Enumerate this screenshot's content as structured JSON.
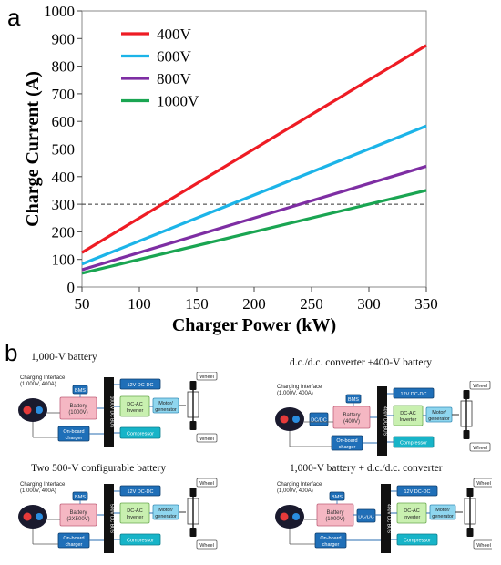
{
  "panel_a_label": "a",
  "panel_b_label": "b",
  "chart_data": {
    "type": "line",
    "xlabel": "Charger Power (kW)",
    "ylabel": "Charge Current (A)",
    "xlim": [
      50,
      350
    ],
    "ylim": [
      0,
      1000
    ],
    "x_ticks": [
      50,
      100,
      150,
      200,
      250,
      300,
      350
    ],
    "y_ticks": [
      0,
      100,
      200,
      300,
      400,
      500,
      600,
      700,
      800,
      900,
      1000
    ],
    "grid": false,
    "legend_position": "top-left",
    "reference_line": {
      "y": 300,
      "style": "dashed"
    },
    "x": [
      50,
      350
    ],
    "series": [
      {
        "name": "400V",
        "color": "#ee1c24",
        "values": [
          125,
          875
        ]
      },
      {
        "name": "600V",
        "color": "#1cb4e8",
        "values": [
          83.3,
          583.3
        ]
      },
      {
        "name": "800V",
        "color": "#7e2ea3",
        "values": [
          62.5,
          437.5
        ]
      },
      {
        "name": "1000V",
        "color": "#1aa552",
        "values": [
          50,
          350
        ]
      }
    ]
  },
  "schematics": [
    {
      "title": "1,000-V battery",
      "interface": "Charging Interface\n(1,000V, 400A)",
      "bms": "BMS",
      "battery": "Battery\n(1000V)",
      "bus": "1000V DC BUS",
      "dcdc12": "12V DC-DC",
      "inverter": "DC-AC\nInverter",
      "motor": "Motor/\ngenerator",
      "onboard": "On-board\ncharger",
      "compressor": "Compressor",
      "wheel_top": "Wheel",
      "wheel_bottom": "Wheel"
    },
    {
      "title": "d.c./d.c. converter +400-V battery",
      "interface": "Charging Interface\n(1,000V, 400A)",
      "dcdc_conv": "DC/DC",
      "bms": "BMS",
      "battery": "Battery\n(400V)",
      "bus": "400V DC BUS",
      "dcdc12": "12V DC-DC",
      "inverter": "DC-AC\nInverter",
      "motor": "Motor/\ngenerator",
      "onboard": "On-board\ncharger",
      "compressor": "Compressor",
      "wheel_top": "Wheel",
      "wheel_bottom": "Wheel"
    },
    {
      "title": "Two 500-V configurable battery",
      "interface": "Charging Interface\n(1,000V, 400A)",
      "bms": "BMS",
      "battery": "Battery\n(2X500V)",
      "bus": "500V DC BUS",
      "dcdc12": "12V DC-DC",
      "inverter": "DC-AC\nInverter",
      "motor": "Motor/\ngenerator",
      "onboard": "On-board\ncharger",
      "compressor": "Compressor",
      "wheel_top": "Wheel",
      "wheel_bottom": "Wheel"
    },
    {
      "title": "1,000-V battery + d.c./d.c. converter",
      "interface": "Charging Interface\n(1,000V, 400A)",
      "bms": "BMS",
      "battery": "Battery\n(1000V)",
      "dcdc_conv": "DC/DC",
      "bus": "400V DC BUS",
      "dcdc12": "12V DC-DC",
      "inverter": "DC-AC\nInverter",
      "motor": "Motor/\ngenerator",
      "onboard": "On-board\ncharger",
      "compressor": "Compressor",
      "wheel_top": "Wheel",
      "wheel_bottom": "Wheel"
    }
  ]
}
